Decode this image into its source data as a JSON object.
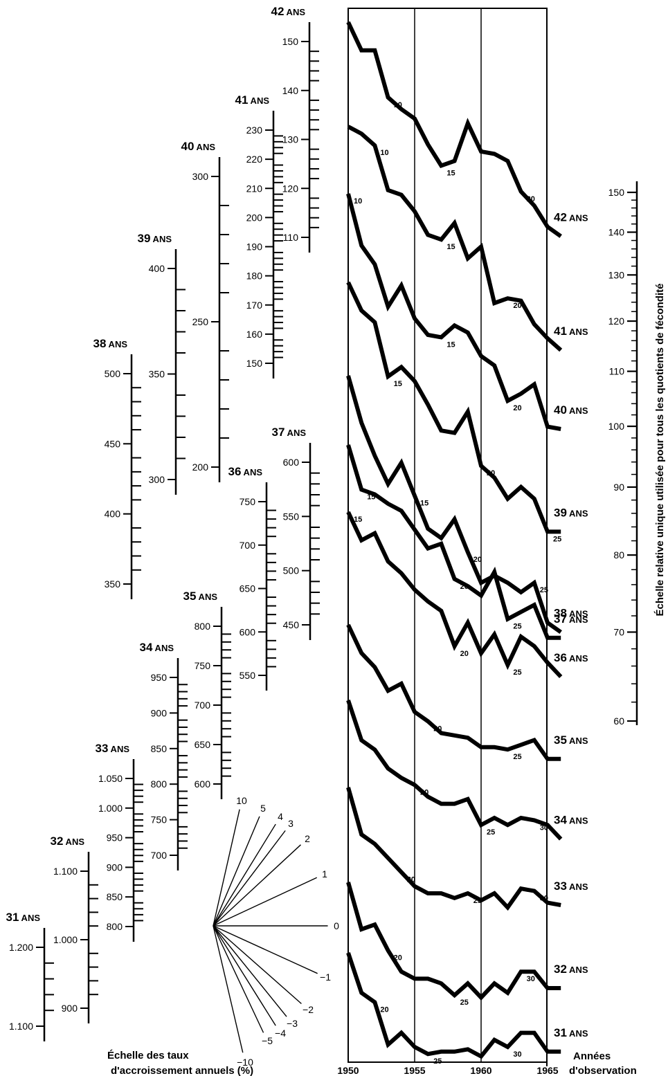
{
  "chart_data": {
    "type": "line",
    "x": [
      1950,
      1951,
      1952,
      1953,
      1954,
      1955,
      1956,
      1957,
      1958,
      1959,
      1960,
      1961,
      1962,
      1963,
      1964,
      1965,
      1966
    ],
    "x_ticks": [
      "1950",
      "1955",
      "1960",
      "1965"
    ],
    "xlabel": "Années d'observation",
    "rel_scale": {
      "label": "Échelle relative unique utilisée pour tous les quotients de fécondité",
      "ticks": [
        60,
        70,
        80,
        90,
        100,
        110,
        120,
        130,
        140,
        150
      ]
    },
    "rate_fan": {
      "label": "Échelle des taux d'accroissement annuels (%)",
      "rays": [
        "10",
        "5",
        "4",
        "3",
        "2",
        "1",
        "0",
        "-1",
        "-2",
        "-3",
        "-4",
        "-5",
        "-10"
      ]
    },
    "series": [
      {
        "age": "42",
        "label": "42",
        "unit": "ANS",
        "y": [
          1.0,
          0.88,
          0.88,
          0.68,
          0.63,
          0.59,
          0.48,
          0.39,
          0.41,
          0.57,
          0.45,
          0.44,
          0.41,
          0.28,
          0.22,
          0.13,
          0.09
        ],
        "marks": [
          {
            "i": 3,
            "t": "10"
          },
          {
            "i": 7,
            "t": "15"
          },
          {
            "i": 13,
            "t": "20"
          }
        ],
        "scale": {
          "x": 447,
          "ticks": [
            110,
            120,
            130,
            140,
            150
          ],
          "top": 32,
          "bottom": 365
        }
      },
      {
        "age": "41",
        "label": "41",
        "unit": "ANS",
        "y": [
          1.0,
          0.97,
          0.92,
          0.73,
          0.71,
          0.64,
          0.54,
          0.52,
          0.59,
          0.44,
          0.49,
          0.25,
          0.27,
          0.26,
          0.16,
          0.1,
          0.05
        ],
        "marks": [
          {
            "i": 2,
            "t": "10"
          },
          {
            "i": 7,
            "t": "15"
          },
          {
            "i": 12,
            "t": "20"
          }
        ],
        "scale": {
          "x": 395,
          "ticks": [
            150,
            160,
            170,
            180,
            190,
            200,
            210,
            220,
            230
          ],
          "top": 160,
          "bottom": 547
        }
      },
      {
        "age": "40",
        "label": "40",
        "unit": "ANS",
        "y": [
          1.0,
          0.78,
          0.7,
          0.52,
          0.61,
          0.47,
          0.4,
          0.39,
          0.44,
          0.41,
          0.31,
          0.27,
          0.12,
          0.15,
          0.19,
          0.01,
          0.0
        ],
        "marks": [
          {
            "i": 0,
            "t": "10"
          },
          {
            "i": 7,
            "t": "15"
          },
          {
            "i": 12,
            "t": "20"
          }
        ],
        "scale": {
          "x": 317,
          "ticks": [
            200,
            250,
            300
          ],
          "top": 227,
          "bottom": 697
        }
      },
      {
        "age": "39",
        "label": "39",
        "unit": "ANS",
        "y": [
          1.0,
          0.88,
          0.83,
          0.6,
          0.64,
          0.58,
          0.48,
          0.37,
          0.36,
          0.45,
          0.22,
          0.17,
          0.08,
          0.13,
          0.08,
          -0.06,
          -0.06
        ],
        "marks": [
          {
            "i": 3,
            "t": "15"
          },
          {
            "i": 10,
            "t": "20"
          },
          {
            "i": 15,
            "t": "25"
          }
        ],
        "scale": {
          "x": 254,
          "ticks": [
            300,
            350,
            400
          ],
          "top": 360,
          "bottom": 715
        }
      },
      {
        "age": "38",
        "label": "38",
        "unit": "ANS",
        "y": [
          1.0,
          0.8,
          0.66,
          0.54,
          0.63,
          0.49,
          0.35,
          0.31,
          0.39,
          0.25,
          0.12,
          0.15,
          0.12,
          0.08,
          0.12,
          -0.05,
          -0.09
        ],
        "marks": [
          {
            "i": 5,
            "t": "15"
          },
          {
            "i": 9,
            "t": "20"
          },
          {
            "i": 14,
            "t": "25"
          }
        ],
        "scale": {
          "x": 190,
          "ticks": [
            350,
            400,
            450,
            500
          ],
          "top": 512,
          "bottom": 866
        }
      },
      {
        "age": "37",
        "label": "37",
        "unit": "ANS",
        "y": [
          1.0,
          0.81,
          0.79,
          0.75,
          0.72,
          0.64,
          0.56,
          0.58,
          0.43,
          0.4,
          0.36,
          0.46,
          0.26,
          0.29,
          0.32,
          0.18,
          0.18
        ],
        "marks": [
          {
            "i": 1,
            "t": "15"
          },
          {
            "i": 8,
            "t": "20"
          },
          {
            "i": 12,
            "t": "25"
          }
        ],
        "scale": {
          "x": 448,
          "ticks": [
            450,
            500,
            550,
            600
          ],
          "top": 640,
          "bottom": 925
        }
      },
      {
        "age": "36",
        "label": "36",
        "unit": "ANS",
        "y": [
          1.0,
          0.88,
          0.91,
          0.79,
          0.74,
          0.67,
          0.62,
          0.58,
          0.43,
          0.53,
          0.4,
          0.48,
          0.35,
          0.47,
          0.43,
          0.36,
          0.3
        ],
        "marks": [
          {
            "i": 0,
            "t": "15"
          },
          {
            "i": 8,
            "t": "20"
          },
          {
            "i": 12,
            "t": "25"
          }
        ],
        "scale": {
          "x": 385,
          "ticks": [
            550,
            600,
            650,
            700,
            750
          ],
          "top": 697,
          "bottom": 998
        }
      },
      {
        "age": "35",
        "label": "35",
        "unit": "ANS",
        "y": [
          1.0,
          0.88,
          0.82,
          0.72,
          0.75,
          0.63,
          0.59,
          0.54,
          0.53,
          0.52,
          0.48,
          0.48,
          0.47,
          0.49,
          0.51,
          0.43,
          0.43
        ],
        "marks": [
          {
            "i": 6,
            "t": "20"
          },
          {
            "i": 12,
            "t": "25"
          }
        ],
        "scale": {
          "x": 320,
          "ticks": [
            600,
            650,
            700,
            750,
            800
          ],
          "top": 877,
          "bottom": 1155
        }
      },
      {
        "age": "34",
        "label": "34",
        "unit": "ANS",
        "y": [
          1.0,
          0.83,
          0.79,
          0.71,
          0.67,
          0.64,
          0.59,
          0.56,
          0.56,
          0.58,
          0.47,
          0.5,
          0.47,
          0.5,
          0.49,
          0.47,
          0.41
        ],
        "marks": [
          {
            "i": 5,
            "t": "20"
          },
          {
            "i": 10,
            "t": "25"
          },
          {
            "i": 14,
            "t": "30"
          }
        ],
        "scale": {
          "x": 257,
          "ticks": [
            700,
            750,
            800,
            850,
            900,
            950
          ],
          "top": 951,
          "bottom": 1258
        }
      },
      {
        "age": "33",
        "label": "33",
        "unit": "ANS",
        "y": [
          1.0,
          0.8,
          0.76,
          0.7,
          0.64,
          0.58,
          0.55,
          0.55,
          0.53,
          0.55,
          0.52,
          0.55,
          0.49,
          0.57,
          0.56,
          0.51,
          0.5
        ],
        "marks": [
          {
            "i": 4,
            "t": "20"
          },
          {
            "i": 9,
            "t": "25"
          },
          {
            "i": 14,
            "t": "30"
          }
        ],
        "scale": {
          "x": 193,
          "ticks": [
            800,
            850,
            900,
            950,
            1000,
            1050
          ],
          "top": 1097,
          "bottom": 1361
        }
      },
      {
        "age": "32",
        "label": "32",
        "unit": "ANS",
        "y": [
          1.0,
          0.8,
          0.82,
          0.71,
          0.62,
          0.59,
          0.59,
          0.57,
          0.52,
          0.57,
          0.51,
          0.57,
          0.53,
          0.62,
          0.62,
          0.55,
          0.55
        ],
        "marks": [
          {
            "i": 3,
            "t": "20"
          },
          {
            "i": 8,
            "t": "25"
          },
          {
            "i": 13,
            "t": "30"
          }
        ],
        "scale": {
          "x": 128,
          "ticks": [
            900,
            1000,
            1100
          ],
          "top": 1231,
          "bottom": 1479
        }
      },
      {
        "age": "31",
        "label": "31",
        "unit": "ANS",
        "y": [
          1.0,
          0.83,
          0.79,
          0.61,
          0.66,
          0.6,
          0.57,
          0.58,
          0.58,
          0.59,
          0.56,
          0.63,
          0.6,
          0.66,
          0.66,
          0.58,
          0.58
        ],
        "marks": [
          {
            "i": 2,
            "t": "20"
          },
          {
            "i": 6,
            "t": "25"
          },
          {
            "i": 12,
            "t": "30"
          }
        ],
        "scale": {
          "x": 64,
          "ticks": [
            1100,
            1200
          ],
          "top": 1341,
          "bottom": 1505
        }
      }
    ]
  }
}
